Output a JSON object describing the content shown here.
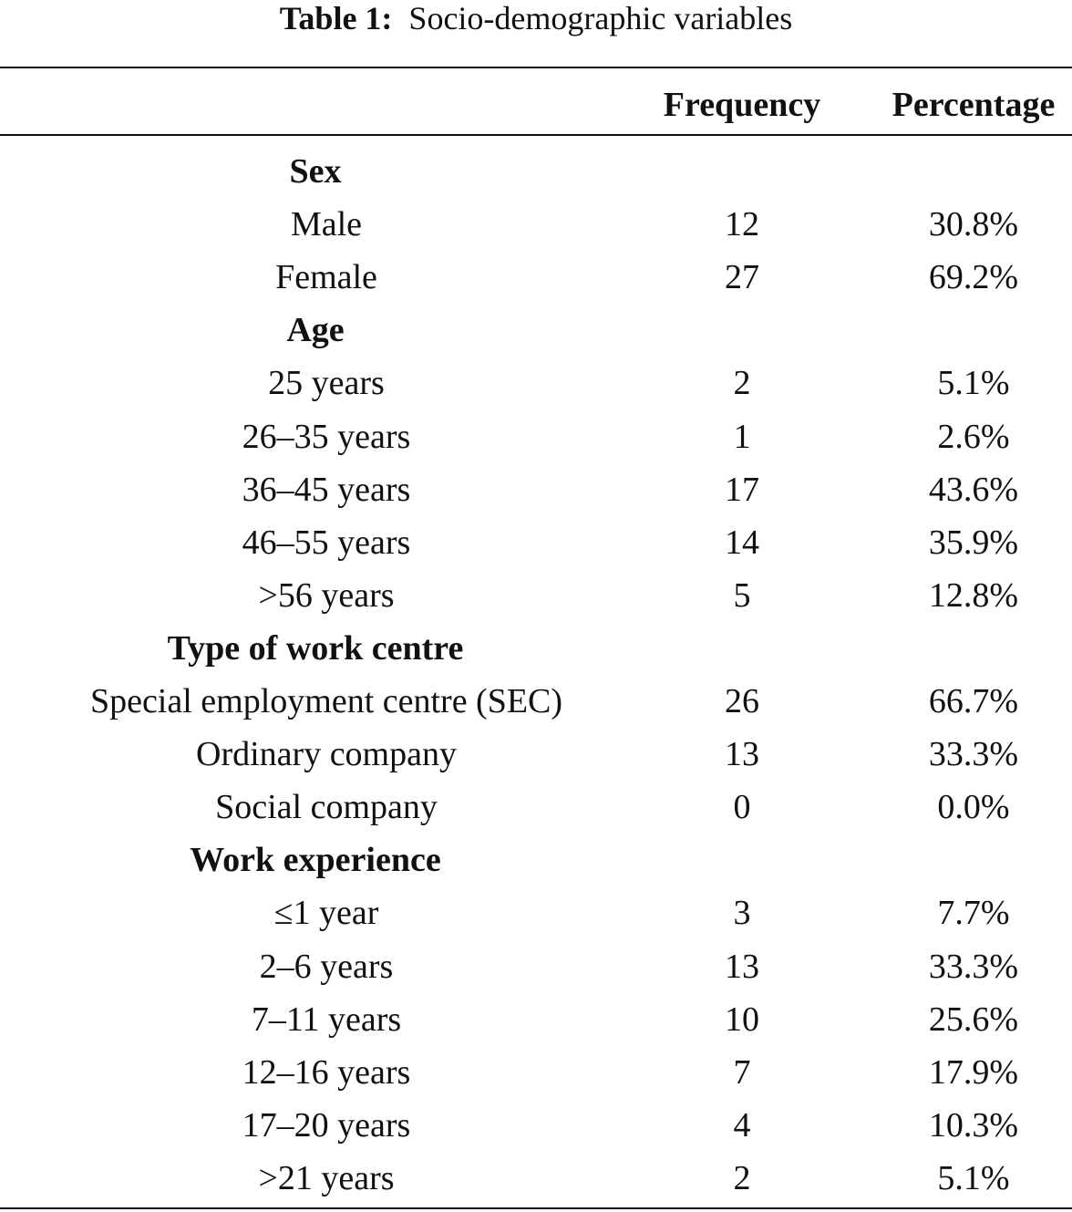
{
  "title": {
    "label": "Table 1:",
    "text": "Socio-demographic variables"
  },
  "header": {
    "frequency": "Frequency",
    "percentage": "Percentage"
  },
  "sections": [
    {
      "title": "Sex",
      "rows": [
        [
          "Male",
          "12",
          "30.8%"
        ],
        [
          "Female",
          "27",
          "69.2%"
        ]
      ]
    },
    {
      "title": "Age",
      "rows": [
        [
          "25 years",
          "2",
          "5.1%"
        ],
        [
          "26–35 years",
          "1",
          "2.6%"
        ],
        [
          "36–45 years",
          "17",
          "43.6%"
        ],
        [
          "46–55 years",
          "14",
          "35.9%"
        ],
        [
          ">56 years",
          "5",
          "12.8%"
        ]
      ]
    },
    {
      "title": "Type of work centre",
      "rows": [
        [
          "Special employment centre (SEC)",
          "26",
          "66.7%"
        ],
        [
          "Ordinary company",
          "13",
          "33.3%"
        ],
        [
          "Social company",
          "0",
          "0.0%"
        ]
      ]
    },
    {
      "title": "Work experience",
      "rows": [
        [
          "≤1 year",
          "3",
          "7.7%"
        ],
        [
          "2–6 years",
          "13",
          "33.3%"
        ],
        [
          "7–11 years",
          "10",
          "25.6%"
        ],
        [
          "12–16 years",
          "7",
          "17.9%"
        ],
        [
          "17–20 years",
          "4",
          "10.3%"
        ],
        [
          ">21 years",
          "2",
          "5.1%"
        ]
      ]
    }
  ]
}
